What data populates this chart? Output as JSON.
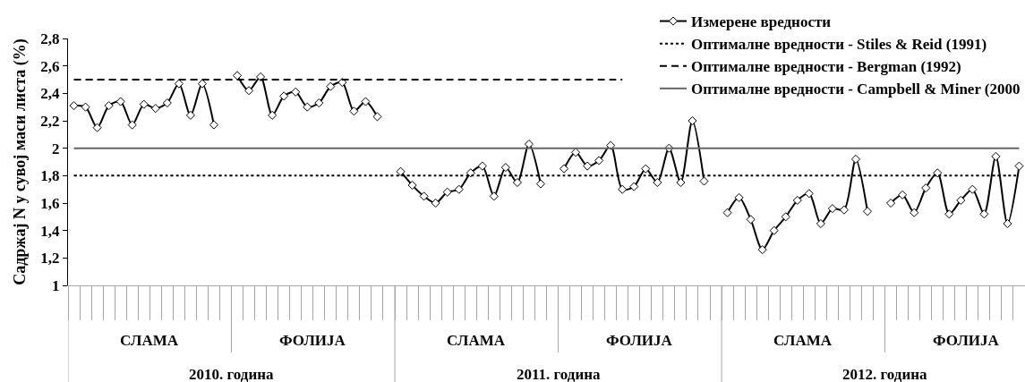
{
  "chart_data": {
    "type": "line",
    "ylabel": "Садржај N у сувој маси листа (%)",
    "categories": [
      null,
      null,
      null,
      null,
      null,
      null,
      null,
      null,
      null,
      null,
      null,
      null,
      null,
      null,
      null,
      null,
      null,
      null,
      null,
      null,
      null,
      null,
      null,
      null,
      null,
      null,
      null,
      null,
      null,
      null,
      null,
      null,
      null,
      null,
      null,
      null,
      null,
      null,
      null,
      null,
      null,
      null,
      null,
      null,
      null,
      null,
      null,
      null,
      null,
      null,
      null,
      null,
      null,
      null,
      null,
      null,
      null,
      null,
      null,
      null,
      null,
      null,
      null,
      null,
      null,
      null,
      null,
      null,
      null,
      null,
      null,
      null,
      null,
      null,
      null,
      null,
      null,
      null,
      null,
      null,
      null,
      null
    ],
    "series": [
      {
        "name": "Измерене вредности",
        "color": "#000000",
        "marker": "diamond",
        "line_style": "solid",
        "values": [
          2.31,
          2.3,
          2.15,
          2.31,
          2.34,
          2.17,
          2.32,
          2.29,
          2.33,
          2.47,
          2.24,
          2.47,
          2.17,
          null,
          2.53,
          2.42,
          2.52,
          2.24,
          2.38,
          2.41,
          2.3,
          2.33,
          2.45,
          2.48,
          2.27,
          2.34,
          2.23,
          null,
          1.83,
          1.73,
          1.65,
          1.6,
          1.68,
          1.7,
          1.82,
          1.87,
          1.65,
          1.86,
          1.75,
          2.03,
          1.74,
          null,
          1.85,
          1.97,
          1.87,
          1.91,
          2.02,
          1.7,
          1.72,
          1.85,
          1.75,
          2.0,
          1.75,
          2.2,
          1.76,
          null,
          1.53,
          1.64,
          1.48,
          1.26,
          1.4,
          1.5,
          1.62,
          1.67,
          1.45,
          1.56,
          1.55,
          1.92,
          1.54,
          null,
          1.6,
          1.66,
          1.53,
          1.71,
          1.82,
          1.52,
          1.62,
          1.7,
          1.52,
          1.94,
          1.45,
          1.87
        ]
      },
      {
        "name": "Оптималне вредности - Stiles & Reid (1991)",
        "color": "#000000",
        "marker": "none",
        "line_style": "dotted",
        "values": [
          1.8,
          1.8,
          1.8,
          1.8,
          1.8,
          1.8,
          1.8,
          1.8,
          1.8,
          1.8,
          1.8,
          1.8,
          1.8,
          1.8,
          1.8,
          1.8,
          1.8,
          1.8,
          1.8,
          1.8,
          1.8,
          1.8,
          1.8,
          1.8,
          1.8,
          1.8,
          1.8,
          1.8,
          1.8,
          1.8,
          1.8,
          1.8,
          1.8,
          1.8,
          1.8,
          1.8,
          1.8,
          1.8,
          1.8,
          1.8,
          1.8,
          1.8,
          1.8,
          1.8,
          1.8,
          1.8,
          1.8,
          1.8,
          1.8,
          1.8,
          1.8,
          1.8,
          1.8,
          1.8,
          1.8,
          1.8,
          1.8,
          1.8,
          1.8,
          1.8,
          1.8,
          1.8,
          1.8,
          1.8,
          1.8,
          1.8,
          1.8,
          1.8,
          1.8,
          1.8,
          1.8,
          1.8,
          1.8,
          1.8,
          1.8,
          1.8,
          1.8,
          1.8,
          1.8,
          1.8,
          1.8,
          1.8
        ]
      },
      {
        "name": "Оптималне вредности - Bergman (1992)",
        "color": "#000000",
        "marker": "none",
        "line_style": "dashed",
        "values": [
          2.5,
          2.5,
          2.5,
          2.5,
          2.5,
          2.5,
          2.5,
          2.5,
          2.5,
          2.5,
          2.5,
          2.5,
          2.5,
          2.5,
          2.5,
          2.5,
          2.5,
          2.5,
          2.5,
          2.5,
          2.5,
          2.5,
          2.5,
          2.5,
          2.5,
          2.5,
          2.5,
          2.5,
          2.5,
          2.5,
          2.5,
          2.5,
          2.5,
          2.5,
          2.5,
          2.5,
          2.5,
          2.5,
          2.5,
          2.5,
          2.5,
          2.5,
          2.5,
          2.5,
          2.5,
          2.5,
          2.5,
          2.5,
          null,
          null,
          null,
          null,
          null,
          null,
          null,
          null,
          null,
          null,
          null,
          null,
          null,
          null,
          null,
          null,
          null,
          null,
          null,
          null,
          null,
          null,
          null,
          null,
          null,
          null,
          null,
          null,
          null,
          null,
          null,
          null,
          null,
          null
        ]
      },
      {
        "name": "Оптималне вредности - Campbell & Miner (2000",
        "color": "#666666",
        "marker": "none",
        "line_style": "solid",
        "values": [
          2,
          2,
          2,
          2,
          2,
          2,
          2,
          2,
          2,
          2,
          2,
          2,
          2,
          2,
          2,
          2,
          2,
          2,
          2,
          2,
          2,
          2,
          2,
          2,
          2,
          2,
          2,
          2,
          2,
          2,
          2,
          2,
          2,
          2,
          2,
          2,
          2,
          2,
          2,
          2,
          2,
          2,
          2,
          2,
          2,
          2,
          2,
          2,
          2,
          2,
          2,
          2,
          2,
          2,
          2,
          2,
          2,
          2,
          2,
          2,
          2,
          2,
          2,
          2,
          2,
          2,
          2,
          2,
          2,
          2,
          2,
          2,
          2,
          2,
          2,
          2,
          2,
          2,
          2,
          2,
          2,
          2
        ]
      }
    ],
    "ylim": [
      1,
      2.8
    ],
    "yticks": [
      1,
      {
        "value": 1.2,
        "label": "1,2"
      },
      {
        "value": 1.4,
        "label": "1,4"
      },
      {
        "value": 1.6,
        "label": "1,6"
      },
      {
        "value": 1.8,
        "label": "1,8"
      },
      2,
      {
        "value": 2.2,
        "label": "2,2"
      },
      {
        "value": 2.4,
        "label": "2,4"
      },
      {
        "value": 2.6,
        "label": "2,6"
      },
      {
        "value": 2.8,
        "label": "2,8"
      }
    ],
    "legend": "top right",
    "annotations": [
      "СЛАМА",
      "ФОЛИЈА",
      "СЛАМА",
      "ФОЛИЈА",
      "СЛАМА",
      "ФОЛИЈА",
      "2010. година",
      "2011. година",
      "2012. година"
    ]
  }
}
